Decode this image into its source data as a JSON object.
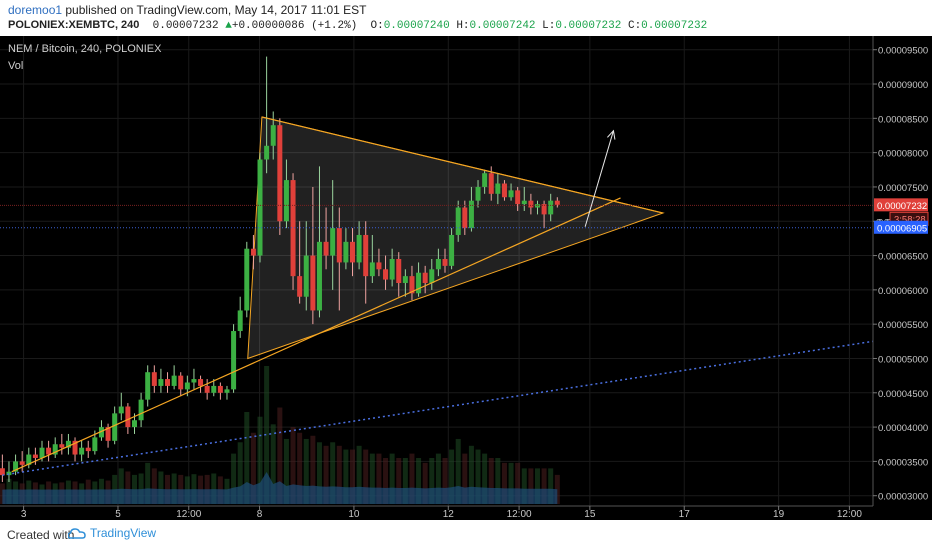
{
  "header": {
    "author": "doremoo1",
    "published_text": " published on TradingView.com, May 14, 2017 11:01 EST",
    "symbol": "POLONIEX:XEMBTC, 240",
    "last": "0.00007232",
    "change": "+0.00000086 (+1.2%)",
    "o_label": "O:",
    "o_value": "0.00007240",
    "h_label": "H:",
    "h_value": "0.00007242",
    "l_label": "L:",
    "l_value": "0.00007232",
    "c_label": "C:",
    "c_value": "0.00007232"
  },
  "footer": {
    "created_with": "Created with",
    "brand": "TradingView"
  },
  "colors": {
    "up": "#3cb043",
    "down": "#e0403a",
    "wedge": "#f5a623",
    "price_tag": "#e0403a",
    "blue_tag": "#2962ff",
    "volume": "#1e4d78"
  },
  "chart_data": {
    "type": "candlestick",
    "title": "NEM / Bitcoin, 240, POLONIEX",
    "indicator_label": "Vol",
    "ylim": [
      2.85e-05,
      9.7e-05
    ],
    "y_ticks": [
      "0.00003000",
      "0.00003500",
      "0.00004000",
      "0.00004500",
      "0.00005000",
      "0.00005500",
      "0.00006000",
      "0.00006500",
      "0.00007000",
      "0.00007500",
      "0.00008000",
      "0.00008500",
      "0.00009000",
      "0.00009500"
    ],
    "y_tick_values": [
      3e-05,
      3.5e-05,
      4e-05,
      4.5e-05,
      5e-05,
      5.5e-05,
      6e-05,
      6.5e-05,
      7e-05,
      7.5e-05,
      8e-05,
      8.5e-05,
      9e-05,
      9.5e-05
    ],
    "x_ticks": [
      "3",
      "5",
      "12:00",
      "8",
      "10",
      "12",
      "12:00",
      "15",
      "17",
      "19",
      "12:00"
    ],
    "x_tick_positions": [
      2.0,
      4.0,
      5.5,
      7.0,
      9.0,
      11.0,
      12.5,
      14.0,
      16.0,
      18.0,
      19.5
    ],
    "xlim": [
      1.5,
      20.0
    ],
    "last_price_tag": "0.00007232",
    "countdown_tag": "3:58:28",
    "blue_line_tag": "0.00006905",
    "hidden_tick": "0.00",
    "last_price": 7.232e-05,
    "blue_line_price": 6.905e-05,
    "candles": [
      [
        1.55,
        3.4,
        3.3,
        3.6,
        3.2
      ],
      [
        1.69,
        3.3,
        3.35,
        3.5,
        3.2
      ],
      [
        1.83,
        3.35,
        3.5,
        3.6,
        3.3
      ],
      [
        1.97,
        3.5,
        3.45,
        3.65,
        3.35
      ],
      [
        2.11,
        3.45,
        3.6,
        3.7,
        3.4
      ],
      [
        2.25,
        3.6,
        3.55,
        3.7,
        3.45
      ],
      [
        2.39,
        3.55,
        3.7,
        3.8,
        3.5
      ],
      [
        2.53,
        3.7,
        3.6,
        3.8,
        3.5
      ],
      [
        2.67,
        3.6,
        3.75,
        3.85,
        3.55
      ],
      [
        2.81,
        3.75,
        3.7,
        3.9,
        3.6
      ],
      [
        2.95,
        3.7,
        3.8,
        3.9,
        3.6
      ],
      [
        3.09,
        3.8,
        3.6,
        3.85,
        3.5
      ],
      [
        3.23,
        3.6,
        3.7,
        3.8,
        3.5
      ],
      [
        3.37,
        3.7,
        3.65,
        3.8,
        3.55
      ],
      [
        3.51,
        3.65,
        3.85,
        3.95,
        3.6
      ],
      [
        3.65,
        3.85,
        4.0,
        4.1,
        3.8
      ],
      [
        3.79,
        4.0,
        3.8,
        4.05,
        3.7
      ],
      [
        3.93,
        3.8,
        4.2,
        4.3,
        3.75
      ],
      [
        4.07,
        4.2,
        4.3,
        4.5,
        4.1
      ],
      [
        4.21,
        4.3,
        4.0,
        4.35,
        3.9
      ],
      [
        4.35,
        4.0,
        4.1,
        4.2,
        3.9
      ],
      [
        4.49,
        4.1,
        4.4,
        4.5,
        4.0
      ],
      [
        4.63,
        4.4,
        4.8,
        4.9,
        4.3
      ],
      [
        4.77,
        4.8,
        4.6,
        4.9,
        4.5
      ],
      [
        4.91,
        4.6,
        4.7,
        4.85,
        4.5
      ],
      [
        5.05,
        4.7,
        4.6,
        4.8,
        4.5
      ],
      [
        5.19,
        4.6,
        4.75,
        4.9,
        4.55
      ],
      [
        5.33,
        4.75,
        4.55,
        4.8,
        4.45
      ],
      [
        5.47,
        4.55,
        4.65,
        4.75,
        4.45
      ],
      [
        5.61,
        4.65,
        4.7,
        4.85,
        4.55
      ],
      [
        5.75,
        4.7,
        4.6,
        4.75,
        4.5
      ],
      [
        5.89,
        4.6,
        4.5,
        4.7,
        4.4
      ],
      [
        6.03,
        4.5,
        4.6,
        4.7,
        4.45
      ],
      [
        6.17,
        4.6,
        4.5,
        4.65,
        4.4
      ],
      [
        6.31,
        4.5,
        4.55,
        4.6,
        4.4
      ],
      [
        6.45,
        4.55,
        5.4,
        5.5,
        4.5
      ],
      [
        6.59,
        5.4,
        5.7,
        5.9,
        5.3
      ],
      [
        6.73,
        5.7,
        6.6,
        6.7,
        5.6
      ],
      [
        6.87,
        6.6,
        6.5,
        6.8,
        6.3
      ],
      [
        7.01,
        6.5,
        7.9,
        8.0,
        6.4
      ],
      [
        7.15,
        7.9,
        8.1,
        9.4,
        7.7
      ],
      [
        7.29,
        8.1,
        8.4,
        8.6,
        7.9
      ],
      [
        7.43,
        8.4,
        7.0,
        8.5,
        6.8
      ],
      [
        7.57,
        7.0,
        7.6,
        7.9,
        6.9
      ],
      [
        7.71,
        7.6,
        6.2,
        7.7,
        6.0
      ],
      [
        7.85,
        6.2,
        5.9,
        7.0,
        5.8
      ],
      [
        7.99,
        5.9,
        6.5,
        7.0,
        5.7
      ],
      [
        8.13,
        6.5,
        5.7,
        7.5,
        5.5
      ],
      [
        8.27,
        5.7,
        6.7,
        7.8,
        5.6
      ],
      [
        8.41,
        6.7,
        6.5,
        7.2,
        6.3
      ],
      [
        8.55,
        6.5,
        6.9,
        7.6,
        6.0
      ],
      [
        8.69,
        6.9,
        6.4,
        7.2,
        5.7
      ],
      [
        8.83,
        6.4,
        6.7,
        6.9,
        6.3
      ],
      [
        8.97,
        6.7,
        6.4,
        6.9,
        6.2
      ],
      [
        9.11,
        6.4,
        6.8,
        7.0,
        6.3
      ],
      [
        9.25,
        6.8,
        6.2,
        7.0,
        5.8
      ],
      [
        9.39,
        6.2,
        6.4,
        6.8,
        6.1
      ],
      [
        9.53,
        6.4,
        6.3,
        6.6,
        6.2
      ],
      [
        9.67,
        6.3,
        6.15,
        6.5,
        6.0
      ],
      [
        9.81,
        6.15,
        6.45,
        6.6,
        6.05
      ],
      [
        9.95,
        6.45,
        6.1,
        6.55,
        5.9
      ],
      [
        10.09,
        6.1,
        6.2,
        6.3,
        5.9
      ],
      [
        10.23,
        6.2,
        5.95,
        6.35,
        5.85
      ],
      [
        10.37,
        5.95,
        6.25,
        6.4,
        5.9
      ],
      [
        10.51,
        6.25,
        6.1,
        6.35,
        5.95
      ],
      [
        10.65,
        6.1,
        6.3,
        6.45,
        6.0
      ],
      [
        10.79,
        6.3,
        6.45,
        6.6,
        6.2
      ],
      [
        10.93,
        6.45,
        6.35,
        6.6,
        6.25
      ],
      [
        11.07,
        6.35,
        6.8,
        6.9,
        6.3
      ],
      [
        11.21,
        6.8,
        7.2,
        7.3,
        6.7
      ],
      [
        11.35,
        7.2,
        6.9,
        7.3,
        6.8
      ],
      [
        11.49,
        6.9,
        7.3,
        7.5,
        6.85
      ],
      [
        11.63,
        7.3,
        7.5,
        7.6,
        7.2
      ],
      [
        11.77,
        7.5,
        7.7,
        7.75,
        7.4
      ],
      [
        11.91,
        7.7,
        7.4,
        7.8,
        7.3
      ],
      [
        12.05,
        7.4,
        7.55,
        7.7,
        7.25
      ],
      [
        12.19,
        7.55,
        7.35,
        7.6,
        7.3
      ],
      [
        12.33,
        7.35,
        7.45,
        7.55,
        7.3
      ],
      [
        12.47,
        7.45,
        7.25,
        7.5,
        7.15
      ],
      [
        12.61,
        7.25,
        7.3,
        7.5,
        7.15
      ],
      [
        12.75,
        7.3,
        7.2,
        7.4,
        7.1
      ],
      [
        12.89,
        7.2,
        7.25,
        7.3,
        7.1
      ],
      [
        13.03,
        7.25,
        7.1,
        7.3,
        6.9
      ],
      [
        13.17,
        7.1,
        7.3,
        7.4,
        7.0
      ],
      [
        13.31,
        7.3,
        7.24,
        7.35,
        7.2
      ]
    ],
    "volume": [
      1,
      1.5,
      1.2,
      1,
      1.3,
      1.1,
      0.9,
      1.2,
      1,
      1.1,
      1.3,
      1.2,
      1,
      1.4,
      1.2,
      1.5,
      1.3,
      2,
      3,
      2.5,
      2,
      2.2,
      4,
      3,
      2.5,
      2,
      2.2,
      2,
      1.8,
      2.1,
      1.9,
      2,
      2.2,
      1.8,
      1.5,
      6,
      9,
      20,
      12,
      18,
      45,
      15,
      22,
      10,
      14,
      12,
      10,
      11,
      9,
      8,
      9,
      8,
      7,
      7,
      8,
      7,
      6,
      6,
      5,
      6,
      5,
      5,
      6,
      5,
      4,
      5,
      6,
      5,
      7,
      10,
      6,
      8,
      7,
      6,
      5,
      5,
      4,
      4,
      4,
      3,
      3,
      3,
      3,
      3,
      2
    ],
    "wedge_triangle": [
      [
        7.05,
        8.52e-05
      ],
      [
        6.75,
        5e-05
      ],
      [
        15.55,
        7.12e-05
      ]
    ],
    "wedge_upper_line": [
      [
        7.05,
        8.52e-05
      ],
      [
        15.55,
        7.12e-05
      ]
    ],
    "wedge_lower_line": [
      [
        1.75,
        3.35e-05
      ],
      [
        14.65,
        7.34e-05
      ]
    ],
    "arrow_from": [
      13.9,
      6.92e-05
    ],
    "arrow_to": [
      14.5,
      8.32e-05
    ],
    "dotted_trend": [
      [
        1.55,
        3.3e-05
      ],
      [
        20.0,
        5.25e-05
      ]
    ]
  }
}
